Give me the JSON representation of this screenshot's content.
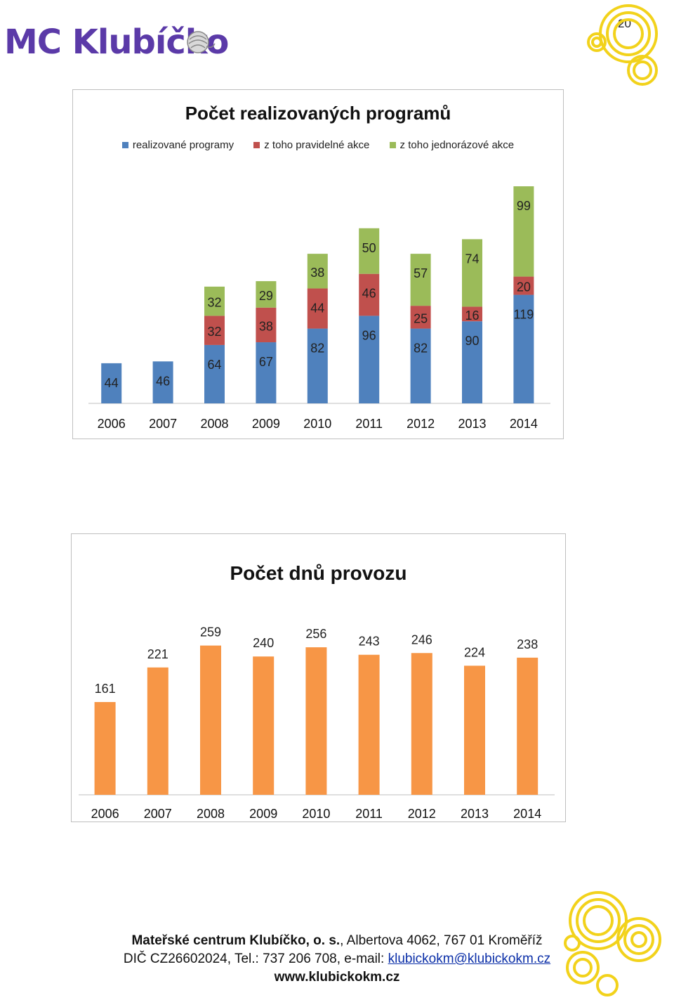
{
  "page_number": "20",
  "logo": {
    "text": "MC Klubíčko"
  },
  "colors": {
    "blue": "#4f81bd",
    "red": "#c0504d",
    "green": "#9bbb59",
    "orange": "#f79646",
    "deco": "#f2d21b",
    "logo": "#5b3aa8"
  },
  "chart_data": [
    {
      "type": "bar",
      "stacked": true,
      "title": "Počet realizovaných programů",
      "categories": [
        "2006",
        "2007",
        "2008",
        "2009",
        "2010",
        "2011",
        "2012",
        "2013",
        "2014"
      ],
      "series": [
        {
          "name": "realizované programy",
          "values": [
            44,
            46,
            64,
            67,
            82,
            96,
            82,
            90,
            119
          ]
        },
        {
          "name": "z toho pravidelné akce",
          "values": [
            null,
            null,
            32,
            38,
            44,
            46,
            25,
            16,
            20
          ]
        },
        {
          "name": "z toho jednorázové akce",
          "values": [
            null,
            null,
            32,
            29,
            38,
            50,
            57,
            74,
            99
          ]
        }
      ],
      "ylim": [
        0,
        245
      ],
      "legend": "top",
      "xlabel": "",
      "ylabel": ""
    },
    {
      "type": "bar",
      "title": "Počet dnů provozu",
      "categories": [
        "2006",
        "2007",
        "2008",
        "2009",
        "2010",
        "2011",
        "2012",
        "2013",
        "2014"
      ],
      "values": [
        161,
        221,
        259,
        240,
        256,
        243,
        246,
        224,
        238
      ],
      "ylim": [
        0,
        300
      ],
      "xlabel": "",
      "ylabel": ""
    }
  ],
  "footer": {
    "org_name": "Mateřské centrum Klubíčko, o. s.",
    "address": ", Albertova 4062, 767 01 Kroměříž",
    "ico_tel": "DIČ CZ26602024, Tel.: 737 206 708, e-mail: ",
    "email": "klubickokm@klubickokm.cz",
    "web": "www.klubickokm.cz"
  }
}
